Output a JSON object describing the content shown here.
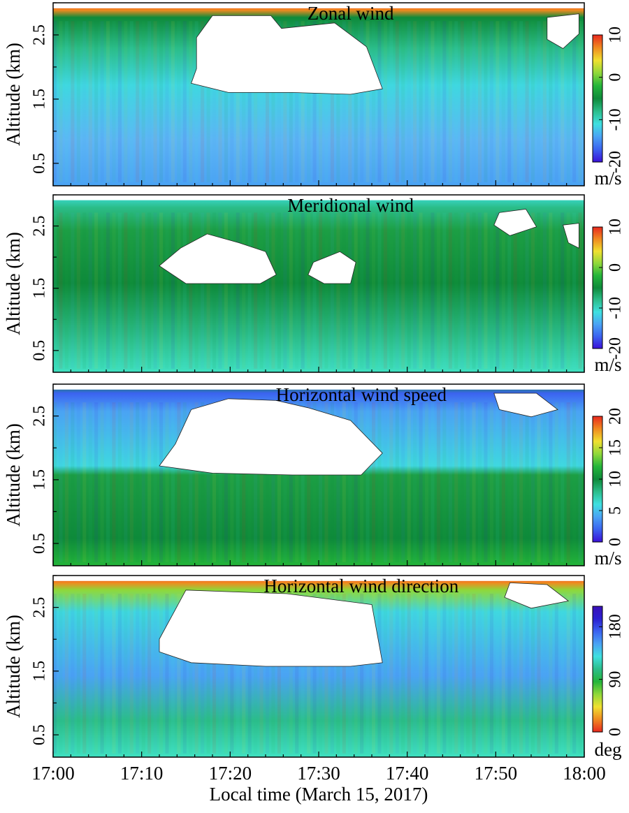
{
  "colors": {
    "zonal": [
      "#3a10d8",
      "#3b63f0",
      "#4aa3f4",
      "#3fe0e0",
      "#2bbd8a",
      "#0e8a3a",
      "#24b53a",
      "#8fd83a",
      "#f0e030",
      "#f08a20",
      "#e8281e"
    ],
    "wind_direction": [
      "#e8281e",
      "#f08a20",
      "#f0e030",
      "#8fd83a",
      "#24b53a",
      "#2bbd8a",
      "#3fe0e0",
      "#4aa3f4",
      "#3b63f0",
      "#2b20d0",
      "#3a10b8"
    ],
    "speed": [
      "#3a10d8",
      "#3b63f0",
      "#4aa3f4",
      "#3fe0e0",
      "#2bbd8a",
      "#0e8a3a",
      "#24b53a",
      "#8fd83a",
      "#f0e030",
      "#f08a20",
      "#e8281e"
    ],
    "no_data": "#ffffff"
  },
  "chart_data": [
    {
      "type": "heatmap",
      "title": "Zonal wind",
      "ylabel": "Altitude (km)",
      "y_ticks": [
        "0.5",
        "1.5",
        "2.5"
      ],
      "y_tick_values": [
        0.5,
        1.5,
        2.5
      ],
      "ylim": [
        0.15,
        3.0
      ],
      "colorbar": {
        "ticks": [
          "10",
          "0",
          "-10",
          "-20"
        ],
        "tick_values": [
          10,
          0,
          -10,
          -20
        ],
        "range": [
          -20,
          10
        ],
        "unit": "m/s",
        "palette": "zonal"
      }
    },
    {
      "type": "heatmap",
      "title": "Meridional wind",
      "ylabel": "Altitude (km)",
      "y_ticks": [
        "0.5",
        "1.5",
        "2.5"
      ],
      "y_tick_values": [
        0.5,
        1.5,
        2.5
      ],
      "ylim": [
        0.15,
        3.0
      ],
      "colorbar": {
        "ticks": [
          "10",
          "0",
          "-10",
          "-20"
        ],
        "tick_values": [
          10,
          0,
          -10,
          -20
        ],
        "range": [
          -20,
          10
        ],
        "unit": "m/s",
        "palette": "zonal"
      }
    },
    {
      "type": "heatmap",
      "title": "Horizontal wind speed",
      "ylabel": "Altitude (km)",
      "y_ticks": [
        "0.5",
        "1.5",
        "2.5"
      ],
      "y_tick_values": [
        0.5,
        1.5,
        2.5
      ],
      "ylim": [
        0.15,
        3.0
      ],
      "colorbar": {
        "ticks": [
          "20",
          "15",
          "10",
          "5",
          "0"
        ],
        "tick_values": [
          20,
          15,
          10,
          5,
          0
        ],
        "range": [
          0,
          20
        ],
        "unit": "m/s",
        "palette": "speed"
      }
    },
    {
      "type": "heatmap",
      "title": "Horizontal wind direction",
      "ylabel": "Altitude (km)",
      "y_ticks": [
        "0.5",
        "1.5",
        "2.5"
      ],
      "y_tick_values": [
        0.5,
        1.5,
        2.5
      ],
      "ylim": [
        0.15,
        3.0
      ],
      "colorbar": {
        "ticks": [
          "180",
          "90",
          "0"
        ],
        "tick_values": [
          180,
          90,
          0
        ],
        "range": [
          0,
          215
        ],
        "unit": "deg",
        "palette": "wind_direction"
      }
    }
  ],
  "x_axis": {
    "label": "Local time (March 15, 2017)",
    "ticks": [
      "17:00",
      "17:10",
      "17:20",
      "17:30",
      "17:40",
      "17:50",
      "18:00"
    ],
    "tick_values_min": [
      0,
      10,
      20,
      30,
      40,
      50,
      60
    ],
    "xlim_min": [
      0,
      60
    ]
  }
}
